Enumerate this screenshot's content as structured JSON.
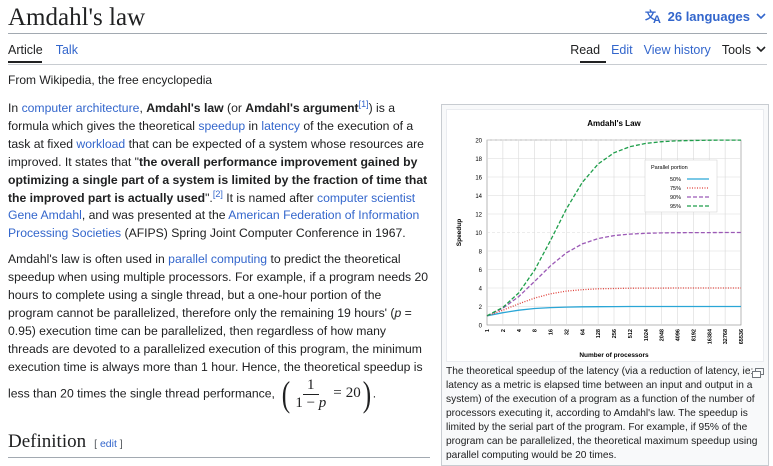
{
  "page": {
    "title": "Amdahl's law",
    "languages_label": "26 languages",
    "tabs_left": [
      "Article",
      "Talk"
    ],
    "tabs_right": [
      "Read",
      "Edit",
      "View history"
    ],
    "tools_label": "Tools",
    "from_text": "From Wikipedia, the free encyclopedia"
  },
  "para1": {
    "t1": "In ",
    "link1": "computer architecture",
    "t2": ", ",
    "bold1": "Amdahl's law",
    "t3": " (or ",
    "bold2": "Amdahl's argument",
    "sup1": "[1]",
    "t4": ") is a formula which gives the theoretical ",
    "link2": "speedup",
    "t5": " in ",
    "link3": "latency",
    "t6": " of the execution of a task at fixed ",
    "link4": "workload",
    "t7": " that can be expected of a system whose resources are improved. It states that \"",
    "bold3": "the overall performance improvement gained by optimizing a single part of a system is limited by the fraction of time that the improved part is actually used",
    "t8": "\".",
    "sup2": "[2]",
    "t9": " It is named after ",
    "link5": "computer scientist Gene Amdahl",
    "t10": ", and was presented at the ",
    "link6": "American Federation of Information Processing Societies",
    "t11": " (AFIPS) Spring Joint Computer Conference in 1967."
  },
  "para2": {
    "t1": "Amdahl's law is often used in ",
    "link1": "parallel computing",
    "t2": " to predict the theoretical speedup when using multiple processors. For example, if a program needs 20 hours to complete using a single thread, but a one-hour portion of the program cannot be parallelized, therefore only the remaining 19 hours' (",
    "p_var": "p",
    "t3": " = 0.95) execution time can be parallelized, then regardless of how many threads are devoted to a parallelized execution of this program, the minimum execution time is always more than 1 hour. Hence, the theoretical speedup is less than 20 times the single thread performance, ",
    "math_num": "1",
    "math_den_left": "1 − ",
    "math_den_var": "p",
    "math_eq": "=",
    "math_rhs": "20",
    "t4": "."
  },
  "definition": {
    "heading": "Definition",
    "edit_open": "[ ",
    "edit_label": "edit",
    "edit_close": " ]"
  },
  "caption": "The theoretical speedup of the latency (via a reduction of latency, ie: latency as a metric is elapsed time between an input and output in a system) of the execution of a program as a function of the number of processors executing it, according to Amdahl's law. The speedup is limited by the serial part of the program. For example, if 95% of the program can be parallelized, the theoretical maximum speedup using parallel computing would be 20 times.",
  "chart_data": {
    "type": "line",
    "title": "Amdahl's Law",
    "xlabel": "Number of processors",
    "ylabel": "Speedup",
    "x_scale": "log2",
    "x": [
      1,
      2,
      4,
      8,
      16,
      32,
      64,
      128,
      256,
      512,
      1024,
      2048,
      4096,
      8192,
      16384,
      32768,
      65536
    ],
    "x_tick_labels": [
      "1",
      "2",
      "4",
      "8",
      "16",
      "32",
      "64",
      "128",
      "256",
      "512",
      "1024",
      "2048",
      "4096",
      "8192",
      "16384",
      "32768",
      "65536"
    ],
    "ylim": [
      0,
      20
    ],
    "y_ticks": [
      "0",
      "2",
      "4",
      "6",
      "8",
      "10",
      "12",
      "14",
      "16",
      "18",
      "20"
    ],
    "grid": true,
    "legend_title": "Parallel portion",
    "legend_position": "top-right",
    "series": [
      {
        "name": "50%",
        "p": 0.5,
        "color": "#2aa6d6",
        "style": "solid",
        "values": [
          1.0,
          1.33,
          1.6,
          1.78,
          1.88,
          1.94,
          1.97,
          1.98,
          1.99,
          2.0,
          2.0,
          2.0,
          2.0,
          2.0,
          2.0,
          2.0,
          2.0
        ]
      },
      {
        "name": "75%",
        "p": 0.75,
        "color": "#e0403a",
        "style": "dotted",
        "values": [
          1.0,
          1.6,
          2.29,
          2.91,
          3.37,
          3.66,
          3.82,
          3.91,
          3.95,
          3.98,
          3.99,
          3.99,
          4.0,
          4.0,
          4.0,
          4.0,
          4.0
        ]
      },
      {
        "name": "90%",
        "p": 0.9,
        "color": "#9b59b6",
        "style": "dashed",
        "values": [
          1.0,
          1.82,
          3.08,
          4.71,
          6.4,
          7.8,
          8.77,
          9.34,
          9.66,
          9.83,
          9.91,
          9.96,
          9.98,
          9.99,
          9.99,
          10.0,
          10.0
        ]
      },
      {
        "name": "95%",
        "p": 0.95,
        "color": "#1e9e4a",
        "style": "dashed",
        "values": [
          1.0,
          1.9,
          3.48,
          5.93,
          9.14,
          12.55,
          15.42,
          17.41,
          18.62,
          19.28,
          19.63,
          19.82,
          19.91,
          19.95,
          19.98,
          19.99,
          19.99
        ]
      }
    ]
  }
}
